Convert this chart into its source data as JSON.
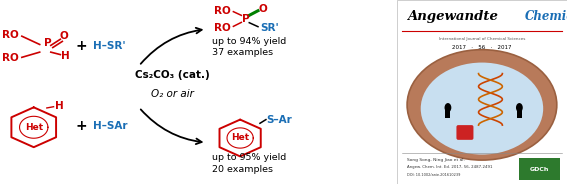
{
  "bg_color": "#ffffff",
  "colors": {
    "red": "#cc0000",
    "blue": "#1a6eb5",
    "black": "#000000",
    "green": "#008000",
    "dark_green": "#2d7a2d"
  },
  "catalyst": "Cs₂CO₃ (cat.)",
  "oxidant": "O₂ or air",
  "hsr": "H–SR'",
  "hsar": "H–SAr",
  "product1_yield": "up to 94% yield",
  "product1_ex": "37 examples",
  "product2_yield": "up to 95% yield",
  "product2_ex": "20 examples",
  "het": "Het",
  "sar_label": "S–Ar",
  "sr_label": "SR'"
}
